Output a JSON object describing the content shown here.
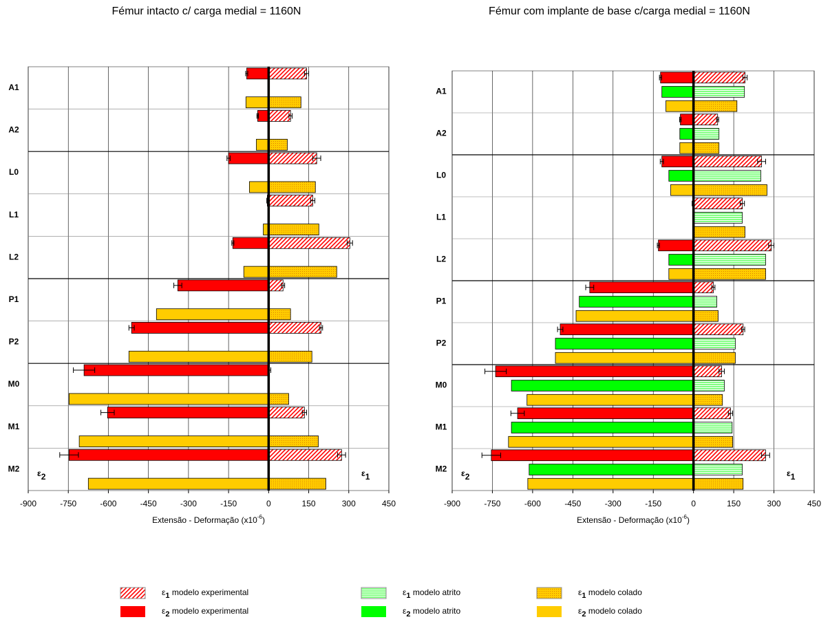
{
  "chart_data": [
    {
      "type": "bar",
      "title": "Fémur intacto c/ carga medial = 1160N",
      "xlabel": "Extensão - Deformação (x10",
      "xlabel_exponent": "-6",
      "xlabel_end": ")",
      "categories": [
        "A1",
        "A2",
        "L0",
        "L1",
        "L2",
        "P1",
        "P2",
        "M0",
        "M1",
        "M2"
      ],
      "xlim": [
        -900,
        450
      ],
      "xticks": [
        -900,
        -750,
        -600,
        -450,
        -300,
        -150,
        0,
        150,
        300,
        450
      ],
      "grid": true,
      "annotations": [
        {
          "text": "ε",
          "sub": "2"
        },
        {
          "text": "ε",
          "sub": "1"
        }
      ],
      "series": [
        {
          "color": "#FF0000",
          "pattern": "hatch",
          "values": [
            142,
            82,
            180,
            165,
            304,
            54,
            196,
            3,
            134,
            273
          ],
          "errors": [
            8,
            6,
            15,
            8,
            10,
            6,
            6,
            5,
            8,
            15
          ]
        },
        {
          "color": "#FF0000",
          "pattern": "solid",
          "values": [
            -82,
            -41,
            -150,
            -5,
            -134,
            -340,
            -513,
            -691,
            -603,
            -747
          ],
          "errors": [
            4,
            3,
            6,
            2,
            4,
            15,
            10,
            40,
            25,
            35
          ]
        },
        {
          "color": "#FFCC00",
          "pattern": "dots",
          "values": [
            121,
            70,
            175,
            188,
            255,
            82,
            162,
            75,
            186,
            214
          ]
        },
        {
          "color": "#FFCC00",
          "pattern": "solid",
          "values": [
            -85,
            -46,
            -72,
            -20,
            -93,
            -420,
            -523,
            -747,
            -709,
            -675
          ]
        }
      ]
    },
    {
      "type": "bar",
      "title": "Fémur com implante de base c/carga medial  = 1160N",
      "xlabel": "Extensão - Deformação (x10",
      "xlabel_exponent": "-6",
      "xlabel_end": ")",
      "categories": [
        "A1",
        "A2",
        "L0",
        "L1",
        "L2",
        "P1",
        "P2",
        "M0",
        "M1",
        "M2"
      ],
      "xlim": [
        -900,
        450
      ],
      "xticks": [
        -900,
        -750,
        -600,
        -450,
        -300,
        -150,
        0,
        150,
        300,
        450
      ],
      "grid": true,
      "annotations": [
        {
          "text": "ε",
          "sub": "2"
        },
        {
          "text": "ε",
          "sub": "1"
        }
      ],
      "series": [
        {
          "name": "ε1 modelo experimental",
          "color": "#FF0000",
          "pattern": "hatch",
          "values": [
            192,
            90,
            254,
            182,
            290,
            74,
            185,
            105,
            138,
            269
          ],
          "errors": [
            8,
            4,
            15,
            8,
            10,
            6,
            6,
            10,
            8,
            15
          ]
        },
        {
          "name": "ε2 modelo experimental",
          "color": "#FF0000",
          "pattern": "solid",
          "values": [
            -123,
            -49,
            -118,
            -3,
            -131,
            -387,
            -497,
            -738,
            -656,
            -754
          ],
          "errors": [
            4,
            3,
            6,
            2,
            4,
            15,
            10,
            40,
            25,
            35
          ]
        },
        {
          "name": "ε1 modelo atrito",
          "color": "#00FF00",
          "pattern": "lines",
          "values": [
            190,
            95,
            251,
            182,
            269,
            87,
            156,
            115,
            144,
            182
          ]
        },
        {
          "name": "ε2 modelo atrito",
          "color": "#00FF00",
          "pattern": "solid",
          "values": [
            -118,
            -51,
            -92,
            0,
            -92,
            -426,
            -515,
            -679,
            -679,
            -613
          ]
        },
        {
          "name": "ε1 modelo colado",
          "color": "#FFCC00",
          "pattern": "dots",
          "values": [
            162,
            95,
            274,
            192,
            269,
            92,
            156,
            108,
            146,
            185
          ]
        },
        {
          "name": "ε2 modelo colado",
          "color": "#FFCC00",
          "pattern": "solid",
          "values": [
            -103,
            -51,
            -85,
            0,
            -92,
            -438,
            -515,
            -621,
            -690,
            -618
          ]
        }
      ]
    }
  ]
}
